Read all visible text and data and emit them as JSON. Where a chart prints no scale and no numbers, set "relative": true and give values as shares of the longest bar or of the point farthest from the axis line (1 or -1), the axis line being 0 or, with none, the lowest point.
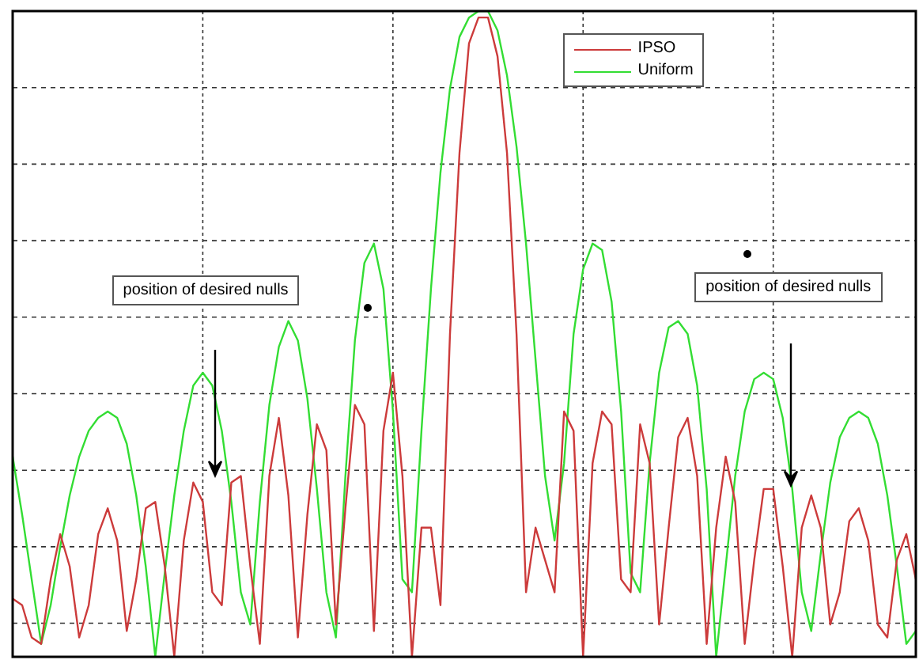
{
  "chart_data": {
    "type": "line",
    "relative": true,
    "grid": true,
    "legend": "top right",
    "marker": "none",
    "line_style": "solid",
    "categories": [
      null,
      null,
      null,
      null,
      null,
      null,
      null,
      null,
      null,
      null,
      null,
      null,
      null,
      null,
      null,
      null,
      null,
      null,
      null,
      null,
      null,
      null,
      null,
      null,
      null,
      null,
      null,
      null,
      null,
      null,
      null,
      null,
      null,
      null,
      null,
      null,
      null,
      null,
      null,
      null,
      null,
      null,
      null,
      null,
      null,
      null,
      null,
      null,
      null,
      null,
      null,
      null,
      null,
      null,
      null,
      null,
      null,
      null,
      null,
      null,
      null,
      null,
      null,
      null,
      null,
      null,
      null,
      null,
      null,
      null,
      null,
      null,
      null,
      null,
      null,
      null,
      null,
      null,
      null,
      null,
      null,
      null,
      null,
      null,
      null,
      null,
      null,
      null,
      null,
      null,
      null,
      null,
      null,
      null,
      null,
      null
    ],
    "series": [
      {
        "name": "IPSO",
        "color": "#cc3b3b",
        "values": [
          0.09,
          0.08,
          0.03,
          0.02,
          0.12,
          0.19,
          0.14,
          0.03,
          0.08,
          0.19,
          0.23,
          0.18,
          0.04,
          0.12,
          0.23,
          0.24,
          0.14,
          0,
          0.18,
          0.27,
          0.24,
          0.1,
          0.08,
          0.27,
          0.28,
          0.14,
          0.02,
          0.28,
          0.37,
          0.25,
          0.03,
          0.22,
          0.36,
          0.32,
          0.05,
          0.23,
          0.39,
          0.36,
          0.04,
          0.35,
          0.44,
          0.28,
          0,
          0.2,
          0.2,
          0.08,
          0.5,
          0.78,
          0.95,
          0.99,
          0.99,
          0.93,
          0.78,
          0.5,
          0.1,
          0.2,
          0.15,
          0.1,
          0.38,
          0.35,
          0,
          0.3,
          0.38,
          0.36,
          0.12,
          0.1,
          0.36,
          0.3,
          0.05,
          0.2,
          0.34,
          0.37,
          0.28,
          0.02,
          0.2,
          0.31,
          0.24,
          0.02,
          0.15,
          0.26,
          0.26,
          0.14,
          0,
          0.2,
          0.25,
          0.2,
          0.05,
          0.1,
          0.21,
          0.23,
          0.18,
          0.05,
          0.03,
          0.15,
          0.19,
          0.12
        ]
      },
      {
        "name": "Uniform",
        "color": "#33dd33",
        "values": [
          0.31,
          0.22,
          0.12,
          0.02,
          0.08,
          0.17,
          0.25,
          0.31,
          0.35,
          0.37,
          0.38,
          0.37,
          0.33,
          0.25,
          0.14,
          0,
          0.13,
          0.25,
          0.35,
          0.42,
          0.44,
          0.42,
          0.35,
          0.24,
          0.1,
          0.05,
          0.24,
          0.39,
          0.48,
          0.52,
          0.49,
          0.4,
          0.26,
          0.1,
          0.03,
          0.28,
          0.49,
          0.61,
          0.64,
          0.57,
          0.38,
          0.12,
          0.1,
          0.35,
          0.57,
          0.75,
          0.88,
          0.96,
          0.99,
          1,
          1,
          0.97,
          0.9,
          0.79,
          0.64,
          0.46,
          0.28,
          0.18,
          0.3,
          0.5,
          0.6,
          0.64,
          0.63,
          0.55,
          0.38,
          0.13,
          0.1,
          0.3,
          0.44,
          0.51,
          0.52,
          0.5,
          0.42,
          0.26,
          0,
          0.14,
          0.28,
          0.38,
          0.43,
          0.44,
          0.43,
          0.37,
          0.26,
          0.1,
          0.04,
          0.16,
          0.27,
          0.34,
          0.37,
          0.38,
          0.37,
          0.33,
          0.25,
          0.14,
          0.02,
          0.04
        ]
      }
    ],
    "annotations": [
      "position of desired nulls",
      "position of desired nulls"
    ]
  }
}
